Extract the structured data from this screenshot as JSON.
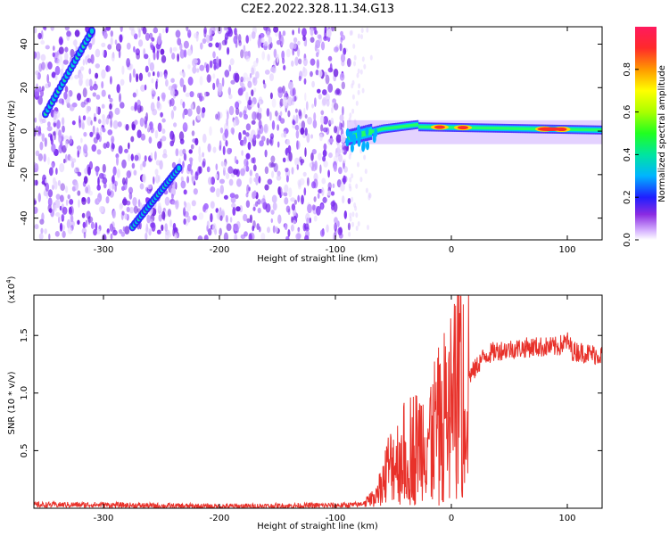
{
  "title": "C2E2.2022.328.11.34.G13",
  "chart_data": [
    {
      "type": "heatmap",
      "title": "C2E2.2022.328.11.34.G13",
      "xlabel": "Height of straight line (km)",
      "ylabel": "Frequency (Hz)",
      "xlim": [
        -360,
        130
      ],
      "ylim": [
        -50,
        48
      ],
      "xticks": [
        -300,
        -200,
        -100,
        0,
        100
      ],
      "yticks": [
        -40,
        -20,
        0,
        20,
        40
      ],
      "xtick_labels": [
        "-300",
        "-200",
        "-100",
        "0",
        "100"
      ],
      "ytick_labels": [
        "-40",
        "-20",
        "0",
        "20",
        "40"
      ],
      "colorbar": {
        "label": "Normalized spectral amplitude",
        "range": [
          0,
          1
        ],
        "ticks": [
          0.0,
          0.2,
          0.4,
          0.6,
          0.8
        ],
        "tick_labels": [
          "0.0",
          "0.2",
          "0.4",
          "0.6",
          "0.8"
        ],
        "colormap": "rainbow-white"
      },
      "noise_region": {
        "x_from": -360,
        "x_to": -88,
        "y_from": -50,
        "y_to": 48
      },
      "features": [
        {
          "name": "diagonal-streak-upper",
          "x": [
            -350,
            -310
          ],
          "y": [
            8,
            46
          ]
        },
        {
          "name": "diagonal-streak-lower",
          "x": [
            -275,
            -235
          ],
          "y": [
            -44,
            -17
          ]
        },
        {
          "name": "horizontal-band",
          "x": [
            -90,
            130
          ],
          "y": [
            -5,
            2
          ],
          "peak_x": [
            -10,
            10,
            80,
            95
          ]
        }
      ]
    },
    {
      "type": "line",
      "title": "",
      "xlabel": "Height of straight line (km)",
      "ylabel": "SNR (10 * v/v)",
      "ylabel_scale": "(x10",
      "ylabel_scale_exp": "4",
      "ylabel_scale_close": ")",
      "xlim": [
        -360,
        130
      ],
      "ylim": [
        0,
        18500
      ],
      "xticks": [
        -300,
        -200,
        -100,
        0,
        100
      ],
      "yticks": [
        5000,
        10000,
        15000
      ],
      "xtick_labels": [
        "-300",
        "-200",
        "-100",
        "0",
        "100"
      ],
      "ytick_labels": [
        "0.5",
        "1.0",
        "1.5"
      ],
      "series": [
        {
          "name": "SNR",
          "color": "#e8312a",
          "x": [
            -360,
            -300,
            -250,
            -200,
            -150,
            -100,
            -80,
            -70,
            -60,
            -55,
            -50,
            -45,
            -40,
            -35,
            -30,
            -25,
            -20,
            -15,
            -10,
            -5,
            0,
            5,
            8,
            9,
            10,
            12,
            15,
            20,
            25,
            30,
            35,
            40,
            50,
            60,
            70,
            80,
            90,
            95,
            100,
            105,
            110,
            120,
            130
          ],
          "y": [
            300,
            300,
            200,
            150,
            200,
            250,
            300,
            700,
            2000,
            3500,
            4000,
            4500,
            5000,
            5500,
            5500,
            6000,
            6500,
            7000,
            7500,
            8500,
            9500,
            10000,
            18000,
            2000,
            10000,
            11000,
            11500,
            12000,
            12800,
            13300,
            13500,
            13700,
            13800,
            13900,
            14000,
            14000,
            14000,
            14200,
            14500,
            13600,
            13600,
            13400,
            13300
          ]
        }
      ]
    }
  ]
}
